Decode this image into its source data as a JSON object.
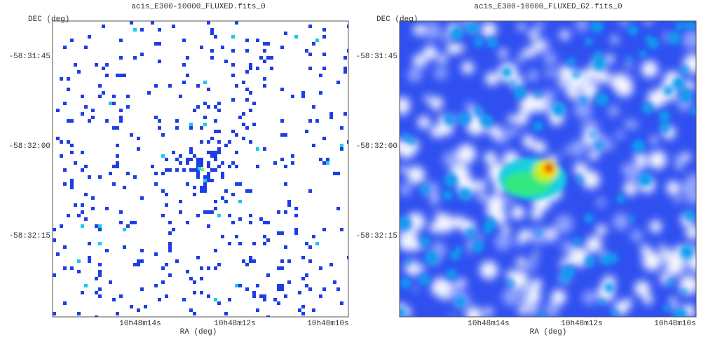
{
  "panels": [
    {
      "title": "acis_E300-10000_FLUXED.fits_0",
      "x_label": "RA (deg)",
      "y_label": "DEC (deg)",
      "x_ticks": [
        "10h48m14s",
        "10h48m12s",
        "10h48m10s"
      ],
      "y_ticks": [
        "-58:31:45",
        "-58:32:00",
        "-58:32:15"
      ]
    },
    {
      "title": "acis_E300-10000_FLUXED_G2.fits_0",
      "x_label": "RA (deg)",
      "y_label": "DEC (deg)",
      "x_ticks": [
        "10h48m14s",
        "10h48m12s",
        "10h48m10s"
      ],
      "y_ticks": [
        "-58:31:45",
        "-58:32:00",
        "-58:32:15"
      ]
    }
  ]
}
